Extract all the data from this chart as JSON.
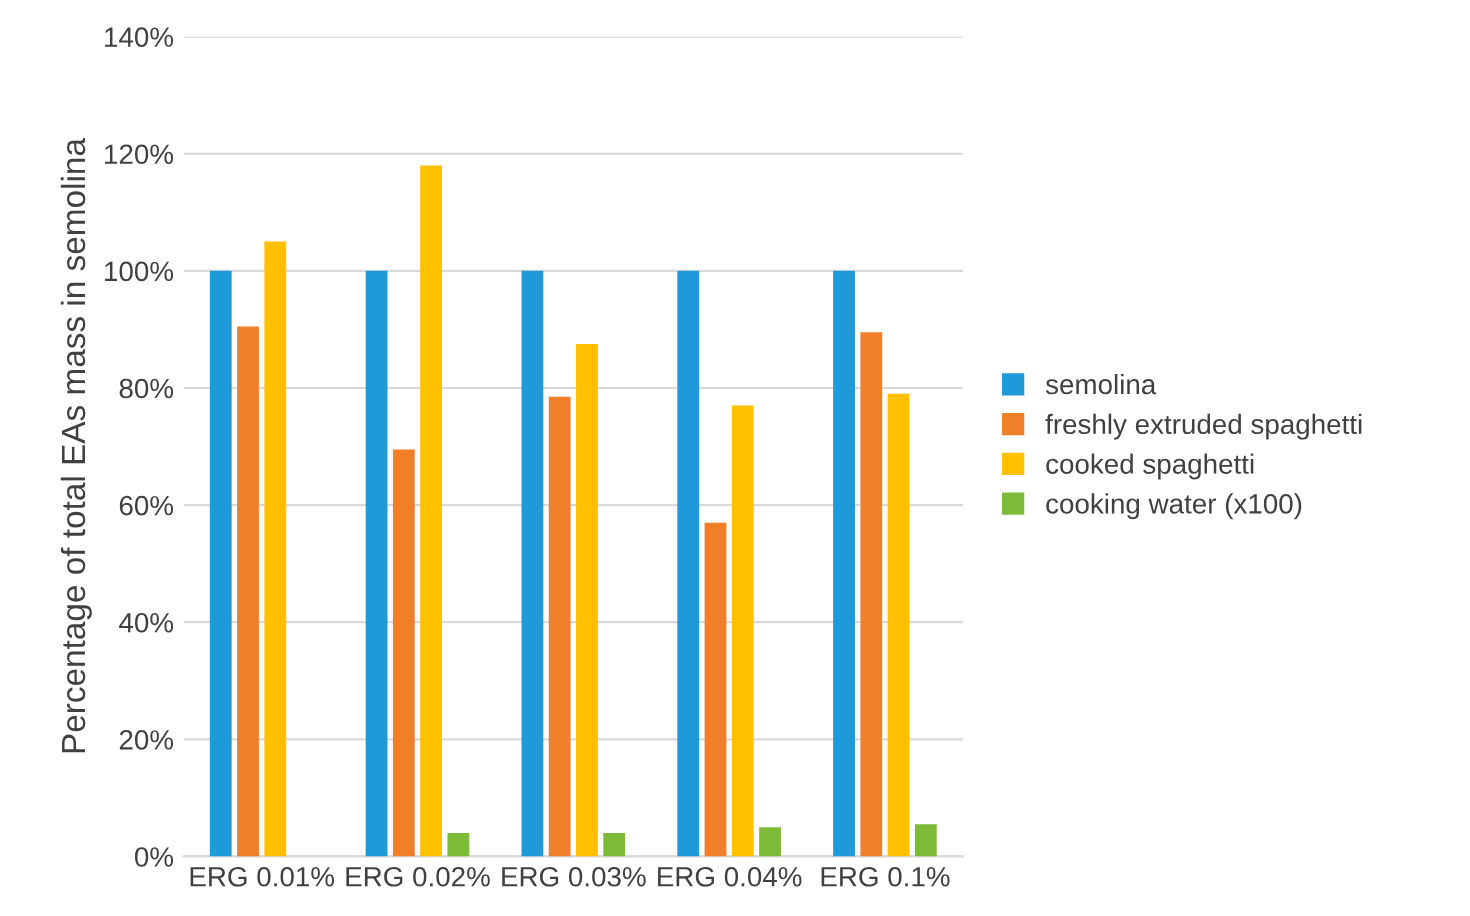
{
  "chart_data": {
    "type": "bar",
    "ylabel": "Percentage of total EAs mass in semolina",
    "categories": [
      "ERG 0.01%",
      "ERG 0.02%",
      "ERG 0.03%",
      "ERG 0.04%",
      "ERG 0.1%"
    ],
    "series": [
      {
        "name": "semolina",
        "color": "#1f9ad8",
        "values": [
          100,
          100,
          100,
          100,
          100
        ]
      },
      {
        "name": "freshly extruded spaghetti",
        "color": "#f07f2a",
        "values": [
          90.5,
          69.5,
          78.5,
          57,
          89.5
        ]
      },
      {
        "name": "cooked spaghetti",
        "color": "#ffc000",
        "values": [
          105,
          118,
          87.5,
          77,
          79
        ]
      },
      {
        "name": "cooking water (x100)",
        "color": "#7cbb38",
        "values": [
          0,
          4,
          4,
          5,
          5.5
        ]
      }
    ],
    "ylim": [
      0,
      140
    ],
    "yticks": [
      {
        "value": 0,
        "label": "0%"
      },
      {
        "value": 20,
        "label": "20%"
      },
      {
        "value": 40,
        "label": "40%"
      },
      {
        "value": 60,
        "label": "60%"
      },
      {
        "value": 80,
        "label": "80%"
      },
      {
        "value": 100,
        "label": "100%"
      },
      {
        "value": 120,
        "label": "120%"
      },
      {
        "value": 140,
        "label": "140%"
      }
    ],
    "grid": "y",
    "legend": "right"
  }
}
